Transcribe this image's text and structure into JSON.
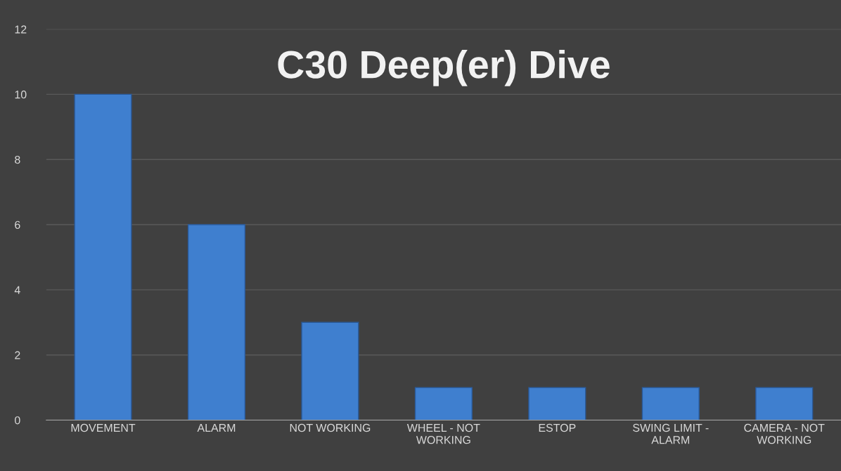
{
  "chart_data": {
    "type": "bar",
    "title": "C30 Deep(er) Dive",
    "categories": [
      "MOVEMENT",
      "ALARM",
      "NOT WORKING",
      "WHEEL - NOT WORKING",
      "ESTOP",
      "SWING LIMIT - ALARM",
      "CAMERA - NOT WORKING"
    ],
    "values": [
      10,
      6,
      3,
      1,
      1,
      1,
      1
    ],
    "color": "#3f7fcf",
    "ylim": [
      0,
      12
    ],
    "yticks": [
      0,
      2,
      4,
      6,
      8,
      10,
      12
    ],
    "grid": "y"
  }
}
